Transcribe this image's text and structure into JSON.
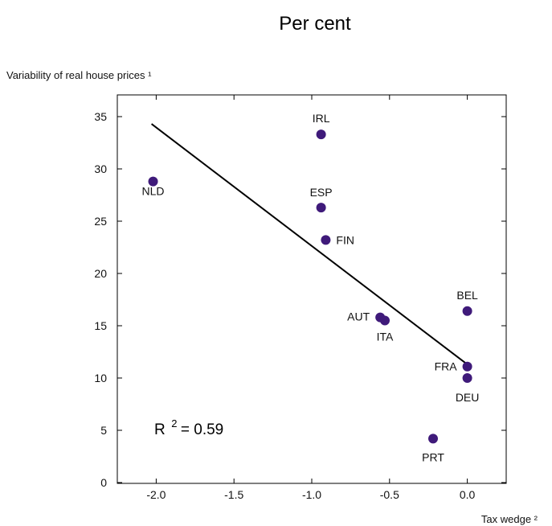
{
  "chart_data": {
    "type": "scatter",
    "title": "Per cent",
    "ylabel": "Variability of real house prices ¹",
    "xlabel": "Tax wedge ²",
    "xlim": [
      -2.25,
      0.25
    ],
    "ylim": [
      0,
      35
    ],
    "x_ticks": [
      -2.0,
      -1.5,
      -1.0,
      -0.5,
      0.0
    ],
    "x_tick_labels": [
      "-2.0",
      "-1.5",
      "-1.0",
      "-0.5",
      "0.0"
    ],
    "y_ticks": [
      0,
      5,
      10,
      15,
      20,
      25,
      30,
      35
    ],
    "y_tick_labels": [
      "0",
      "5",
      "10",
      "15",
      "20",
      "25",
      "30",
      "35"
    ],
    "grid": false,
    "marker_color": "#3f1a7a",
    "line_color": "#000000",
    "points": [
      {
        "label": "NLD",
        "x": -2.02,
        "y": 28.8
      },
      {
        "label": "IRL",
        "x": -0.94,
        "y": 33.3
      },
      {
        "label": "ESP",
        "x": -0.94,
        "y": 26.3
      },
      {
        "label": "FIN",
        "x": -0.91,
        "y": 23.2
      },
      {
        "label": "BEL",
        "x": 0.0,
        "y": 16.4
      },
      {
        "label": "AUT",
        "x": -0.56,
        "y": 15.8
      },
      {
        "label": "ITA",
        "x": -0.53,
        "y": 15.5
      },
      {
        "label": "FRA",
        "x": 0.0,
        "y": 11.1
      },
      {
        "label": "DEU",
        "x": 0.0,
        "y": 10.0
      },
      {
        "label": "PRT",
        "x": -0.22,
        "y": 4.2
      }
    ],
    "trendline": {
      "x": [
        -2.03,
        0.0
      ],
      "y": [
        34.3,
        11.3
      ]
    },
    "annotation": {
      "base": "R",
      "sup": "2",
      "text": " = 0.59"
    }
  }
}
